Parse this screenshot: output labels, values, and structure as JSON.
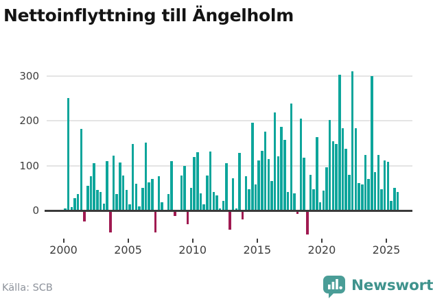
{
  "title": "Nettoinflyttning till Ängelholm",
  "source": {
    "label": "Källa: SCB"
  },
  "logo": {
    "text": "Newsworthy"
  },
  "colors": {
    "positive_bar": "#0da59b",
    "negative_bar": "#a01a51",
    "gridline": "#e4e4e4",
    "axis": "#3a3a3a",
    "tick_label": "#3d3d3d",
    "source_text": "#8d929b",
    "logo_teal": "#4a9d97",
    "logo_text_teal": "#3f938d"
  },
  "chart_data": {
    "type": "bar",
    "title": "Nettoinflyttning till Ängelholm",
    "frequency": "quarterly",
    "start_year": 2000,
    "x_tick_labels": [
      "2000",
      "2005",
      "2010",
      "2015",
      "2020",
      "2025"
    ],
    "y_tick_labels": [
      "0",
      "100",
      "200",
      "300"
    ],
    "y_ticks": [
      0,
      100,
      200,
      300
    ],
    "ylim": [
      -60,
      320
    ],
    "grid": true,
    "legend": false,
    "values": [
      5,
      250,
      7,
      27,
      36,
      182,
      -22,
      55,
      76,
      106,
      46,
      42,
      15,
      110,
      -45,
      122,
      36,
      107,
      78,
      46,
      14,
      148,
      60,
      9,
      50,
      151,
      63,
      71,
      -45,
      76,
      19,
      2,
      37,
      110,
      -9,
      2,
      78,
      100,
      -27,
      50,
      119,
      130,
      39,
      14,
      78,
      131,
      42,
      34,
      4,
      22,
      106,
      -39,
      72,
      4,
      128,
      -16,
      76,
      48,
      196,
      58,
      112,
      133,
      176,
      115,
      66,
      218,
      121,
      186,
      157,
      42,
      238,
      39,
      -4,
      205,
      117,
      -50,
      80,
      48,
      163,
      19,
      45,
      96,
      202,
      154,
      148,
      302,
      184,
      137,
      79,
      310,
      183,
      61,
      58,
      124,
      71,
      299,
      86,
      124,
      48,
      112,
      108,
      22,
      51,
      42
    ]
  }
}
